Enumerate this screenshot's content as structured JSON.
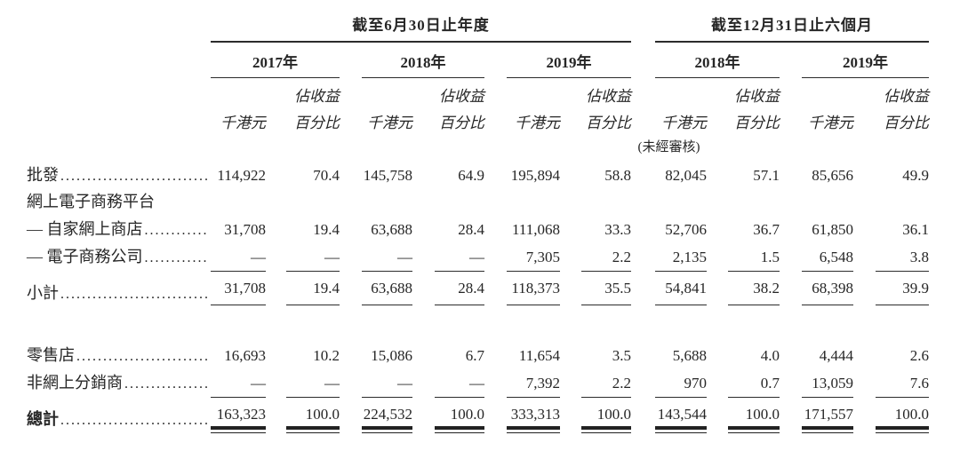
{
  "meta": {
    "ink_color": "#262626",
    "rule_color": "#2b2b2b",
    "background": "#ffffff"
  },
  "table": {
    "groups": [
      {
        "title": "截至6月30日止年度",
        "years": [
          "2017年",
          "2018年",
          "2019年"
        ]
      },
      {
        "title": "截至12月31日止六個月",
        "years": [
          "2018年",
          "2019年"
        ]
      }
    ],
    "unit_label": "千港元",
    "pct_line1": "佔收益",
    "pct_line2": "百分比",
    "unaudited": "(未經審核)",
    "rows": [
      {
        "label": "批發",
        "dots": true,
        "style": "plain",
        "values": [
          "114,922",
          "70.4",
          "145,758",
          "64.9",
          "195,894",
          "58.8",
          "82,045",
          "57.1",
          "85,656",
          "49.9"
        ]
      },
      {
        "label": "網上電子商務平台",
        "dots": false,
        "style": "plain2",
        "values": [
          "",
          "",
          "",
          "",
          "",
          "",
          "",
          "",
          "",
          ""
        ]
      },
      {
        "label": "— 自家網上商店",
        "dots": true,
        "style": "plain",
        "values": [
          "31,708",
          "19.4",
          "63,688",
          "28.4",
          "111,068",
          "33.3",
          "52,706",
          "36.7",
          "61,850",
          "36.1"
        ]
      },
      {
        "label": "— 電子商務公司",
        "dots": true,
        "style": "plain",
        "values": [
          "—",
          "—",
          "—",
          "—",
          "7,305",
          "2.2",
          "2,135",
          "1.5",
          "6,548",
          "3.8"
        ]
      },
      {
        "label": "小計",
        "dots": true,
        "style": "subtotal",
        "values": [
          "31,708",
          "19.4",
          "63,688",
          "28.4",
          "118,373",
          "35.5",
          "54,841",
          "38.2",
          "68,398",
          "39.9"
        ]
      },
      {
        "style": "spacer"
      },
      {
        "label": "零售店",
        "dots": true,
        "style": "plain",
        "values": [
          "16,693",
          "10.2",
          "15,086",
          "6.7",
          "11,654",
          "3.5",
          "5,688",
          "4.0",
          "4,444",
          "2.6"
        ]
      },
      {
        "label": "非網上分銷商",
        "dots": true,
        "style": "plain",
        "values": [
          "—",
          "—",
          "—",
          "—",
          "7,392",
          "2.2",
          "970",
          "0.7",
          "13,059",
          "7.6"
        ]
      },
      {
        "label": "總計",
        "dots": true,
        "bold": true,
        "style": "total",
        "values": [
          "163,323",
          "100.0",
          "224,532",
          "100.0",
          "333,313",
          "100.0",
          "143,544",
          "100.0",
          "171,557",
          "100.0"
        ]
      }
    ]
  }
}
